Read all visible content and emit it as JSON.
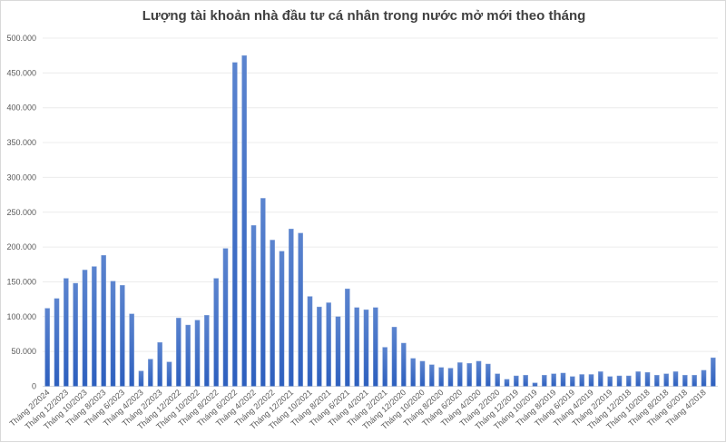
{
  "chart_data": {
    "type": "bar",
    "title": "Lượng tài khoản nhà đầu tư cá nhân trong nước mở mới theo tháng",
    "xlabel": "",
    "ylabel": "",
    "ylim": [
      0,
      500000
    ],
    "y_tick_labels": [
      "0",
      "50.000",
      "100.000",
      "150.000",
      "200.000",
      "250.000",
      "300.000",
      "350.000",
      "400.000",
      "450.000",
      "500.000"
    ],
    "grid": true,
    "bar_color": "#4472c4",
    "x_tick_labels": [
      "Tháng 2/2024",
      "Tháng 12/2023",
      "Tháng 10/2023",
      "Tháng 8/2023",
      "Tháng 6/2023",
      "Tháng 4/2023",
      "Tháng 2/2023",
      "Tháng 12/2022",
      "Tháng 10/2022",
      "Tháng 8/2022",
      "Tháng 6/2022",
      "Tháng 4/2022",
      "Tháng 2/2022",
      "Tháng 12/2021",
      "Tháng 10/2021",
      "Tháng 8/2021",
      "Tháng 6/2021",
      "Tháng 4/2021",
      "Tháng 2/2021",
      "Tháng 12/2020",
      "Tháng 10/2020",
      "Tháng 8/2020",
      "Tháng 6/2020",
      "Tháng 4/2020",
      "Tháng 2/2020",
      "Tháng 12/2019",
      "Tháng 10/2019",
      "Tháng 8/2019",
      "Tháng 6/2019",
      "Tháng 4/2019",
      "Tháng 2/2019",
      "Tháng 12/2018",
      "Tháng 10/2018",
      "Tháng 8/2018",
      "Tháng 6/2018",
      "Tháng 4/2018"
    ],
    "values": [
      112000,
      126000,
      155000,
      148000,
      167000,
      172000,
      188000,
      151000,
      145000,
      104000,
      22000,
      39000,
      63000,
      35000,
      98000,
      88000,
      95000,
      102000,
      155000,
      198000,
      465000,
      475000,
      231000,
      270000,
      210000,
      194000,
      226000,
      220000,
      129000,
      114000,
      120000,
      100000,
      140000,
      113000,
      110000,
      113000,
      56000,
      85000,
      62000,
      40000,
      36000,
      31000,
      27000,
      26000,
      34000,
      33000,
      36000,
      32000,
      18000,
      10000,
      15000,
      16000,
      5000,
      16000,
      18000,
      19000,
      14000,
      17000,
      17000,
      21000,
      14000,
      15000,
      15000,
      21000,
      20000,
      16000,
      18000,
      21000,
      16000,
      16000,
      23000,
      41000
    ]
  }
}
